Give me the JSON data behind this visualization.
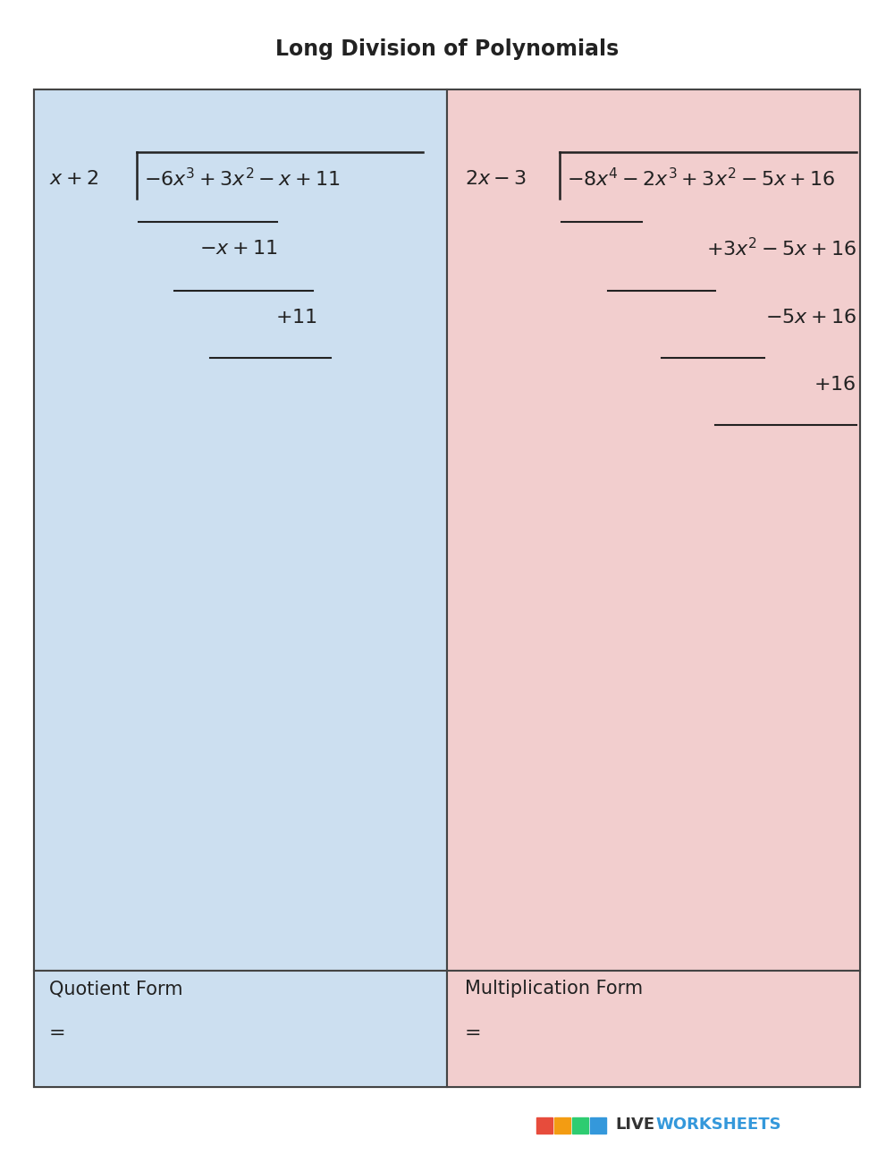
{
  "title": "Long Division of Polynomials",
  "title_fontsize": 17,
  "title_fontweight": "bold",
  "bg_color": "#ffffff",
  "left_bg": "#ccdff0",
  "right_bg": "#f2cece",
  "border_color": "#444444",
  "text_color": "#222222",
  "font_size": 16,
  "watermark_colors": [
    "#e74c3c",
    "#f39c12",
    "#2ecc71",
    "#3498db"
  ],
  "bottom_left_label": "Quotient Form",
  "bottom_left_eq": "=",
  "bottom_right_label": "Multiplication Form",
  "bottom_right_eq": "="
}
